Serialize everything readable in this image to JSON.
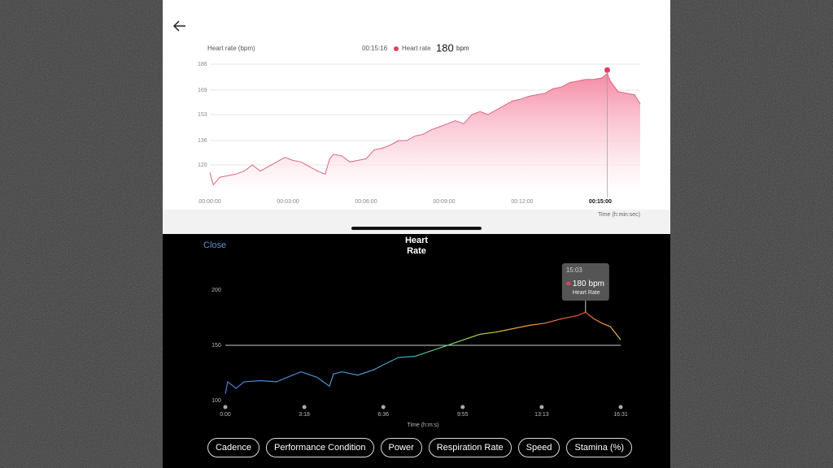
{
  "chart_data": [
    {
      "type": "area",
      "y_label": "Heart rate (bpm)",
      "x_label": "Time (h:min:sec)",
      "highlight": {
        "x_label": "00:15:16",
        "name": "Heart rate",
        "value": 180,
        "unit": "bpm"
      },
      "color": "#d9667f",
      "x": [
        0,
        8,
        23,
        41,
        60,
        79,
        98,
        116,
        135,
        154,
        173,
        191,
        210,
        229,
        248,
        266,
        276,
        285,
        304,
        323,
        341,
        360,
        379,
        398,
        416,
        435,
        454,
        473,
        491,
        510,
        529,
        548,
        566,
        585,
        604,
        623,
        641,
        660,
        679,
        698,
        716,
        735,
        754,
        773,
        791,
        810,
        829,
        848,
        866,
        885,
        904,
        916,
        923,
        941,
        960,
        979,
        992
      ],
      "values": [
        115,
        107,
        112,
        113,
        114,
        116,
        120,
        116,
        119,
        122,
        125,
        123,
        122,
        119,
        116,
        114,
        124,
        127,
        126,
        122,
        123,
        124,
        130,
        131,
        133,
        136,
        136,
        139,
        140,
        143,
        145,
        147,
        149,
        147,
        153,
        155,
        153,
        156,
        159,
        162,
        163,
        165,
        166,
        167,
        170,
        171,
        174,
        175,
        176,
        176,
        177,
        180,
        175,
        168,
        167,
        166,
        160
      ],
      "xlim": [
        0,
        992
      ],
      "ylim": [
        103,
        186
      ],
      "xticks": [
        {
          "value": 0,
          "label": "00:00:00"
        },
        {
          "value": 180,
          "label": "00:03:00"
        },
        {
          "value": 360,
          "label": "00:06:00"
        },
        {
          "value": 540,
          "label": "00:09:00"
        },
        {
          "value": 720,
          "label": "00:12:00"
        },
        {
          "value": 900,
          "label": "00:15:00"
        }
      ],
      "yticks": [
        120,
        136,
        153,
        169,
        186
      ],
      "grid": true
    },
    {
      "type": "line",
      "title": "Heart Rate",
      "x_label": "Time (h:m:s)",
      "tooltip": {
        "time": "15:03",
        "value": 180,
        "unit": "bpm",
        "label": "Heart Rate"
      },
      "x": [
        0,
        6,
        27,
        47,
        88,
        128,
        169,
        190,
        230,
        261,
        271,
        292,
        332,
        373,
        394,
        434,
        475,
        516,
        557,
        597,
        638,
        679,
        720,
        761,
        801,
        842,
        883,
        903,
        924,
        944,
        965,
        991
      ],
      "values": [
        106,
        117,
        111,
        117,
        118,
        117,
        123,
        126,
        121,
        113,
        124,
        126,
        123,
        128,
        132,
        139,
        140,
        145,
        150,
        155,
        160,
        162,
        165,
        168,
        170,
        174,
        177,
        180,
        174,
        170,
        167,
        155
      ],
      "xlim": [
        0,
        991
      ],
      "ylim": [
        100,
        200
      ],
      "xticks": [
        {
          "value": 0,
          "label": "0:00"
        },
        {
          "value": 198,
          "label": "3:18"
        },
        {
          "value": 396,
          "label": "6:36"
        },
        {
          "value": 595,
          "label": "9:55"
        },
        {
          "value": 793,
          "label": "13:13"
        },
        {
          "value": 991,
          "label": "16:31"
        }
      ],
      "yticks": [
        100,
        150,
        200
      ],
      "hline": 150
    }
  ],
  "ui": {
    "close": "Close",
    "buttons": [
      "Cadence",
      "Performance Condition",
      "Power",
      "Respiration Rate",
      "Speed",
      "Stamina (%)"
    ]
  }
}
